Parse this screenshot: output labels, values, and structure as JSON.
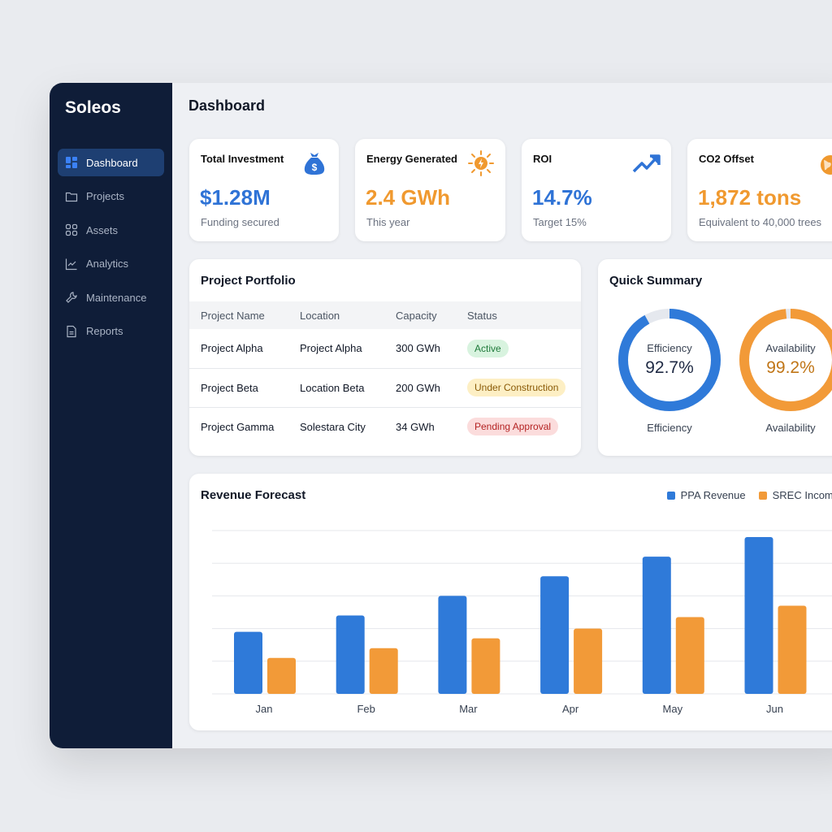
{
  "app": {
    "name": "Soleos"
  },
  "sidebar": {
    "items": [
      {
        "label": "Dashboard",
        "icon": "grid-icon",
        "active": true
      },
      {
        "label": "Projects",
        "icon": "folder-icon"
      },
      {
        "label": "Assets",
        "icon": "apps-icon"
      },
      {
        "label": "Analytics",
        "icon": "chart-line-icon"
      },
      {
        "label": "Maintenance",
        "icon": "wrench-icon"
      },
      {
        "label": "Reports",
        "icon": "document-icon"
      }
    ]
  },
  "header": {
    "title": "Dashboard"
  },
  "kpis": [
    {
      "label": "Total Investment",
      "value": "$1.28M",
      "sub": "Funding secured",
      "color": "#2f73d6",
      "icon": "money-bag-icon"
    },
    {
      "label": "Energy Generated",
      "value": "2.4 GWh",
      "sub": "This year",
      "color": "#f0992f",
      "icon": "sun-bolt-icon"
    },
    {
      "label": "ROI",
      "value": "14.7%",
      "sub": "Target 15%",
      "color": "#2f73d6",
      "icon": "trending-up-icon"
    },
    {
      "label": "CO2 Offset",
      "value": "1,872 tons",
      "sub": "Equivalent to 40,000 trees",
      "color": "#f0992f",
      "icon": "earth-leaf-icon"
    }
  ],
  "portfolio": {
    "title": "Project Portfolio",
    "columns": [
      "Project Name",
      "Location",
      "Capacity",
      "Status"
    ],
    "rows": [
      {
        "name": "Project Alpha",
        "location": "Project Alpha",
        "capacity": "300 GWh",
        "status": "Active",
        "bg": "#d8f3df",
        "fg": "#1f7a3b"
      },
      {
        "name": "Project Beta",
        "location": "Location Beta",
        "capacity": "200 GWh",
        "status": "Under Construction",
        "bg": "#fdefc4",
        "fg": "#8a5a07"
      },
      {
        "name": "Project Gamma",
        "location": "Solestara City",
        "capacity": "34 GWh",
        "status": "Pending Approval",
        "bg": "#fbdcdc",
        "fg": "#b42323"
      }
    ]
  },
  "summary": {
    "title": "Quick Summary",
    "gauges": [
      {
        "label": "Efficiency",
        "value": "92.7%",
        "percent": 92.7,
        "color": "#2f7ad9",
        "text_color": "#1f2a44",
        "caption": "Efficiency"
      },
      {
        "label": "Availability",
        "value": "99.2%",
        "percent": 99.2,
        "color": "#f29a38",
        "text_color": "#c07516",
        "caption": "Availability"
      }
    ]
  },
  "revenue": {
    "title": "Revenue Forecast"
  },
  "chart_data": {
    "type": "bar",
    "title": "Revenue Forecast",
    "categories": [
      "Jan",
      "Feb",
      "Mar",
      "Apr",
      "May",
      "Jun"
    ],
    "series": [
      {
        "name": "PPA Revenue",
        "color": "#2f7ad9",
        "values": [
          1.9,
          2.4,
          3.0,
          3.6,
          4.2,
          4.8
        ]
      },
      {
        "name": "SREC Income",
        "color": "#f29a38",
        "values": [
          1.1,
          1.4,
          1.7,
          2.0,
          2.35,
          2.7
        ]
      }
    ],
    "ylim": [
      0,
      5
    ],
    "grid": true,
    "legend": "top-right",
    "xlabel": "",
    "ylabel": ""
  }
}
